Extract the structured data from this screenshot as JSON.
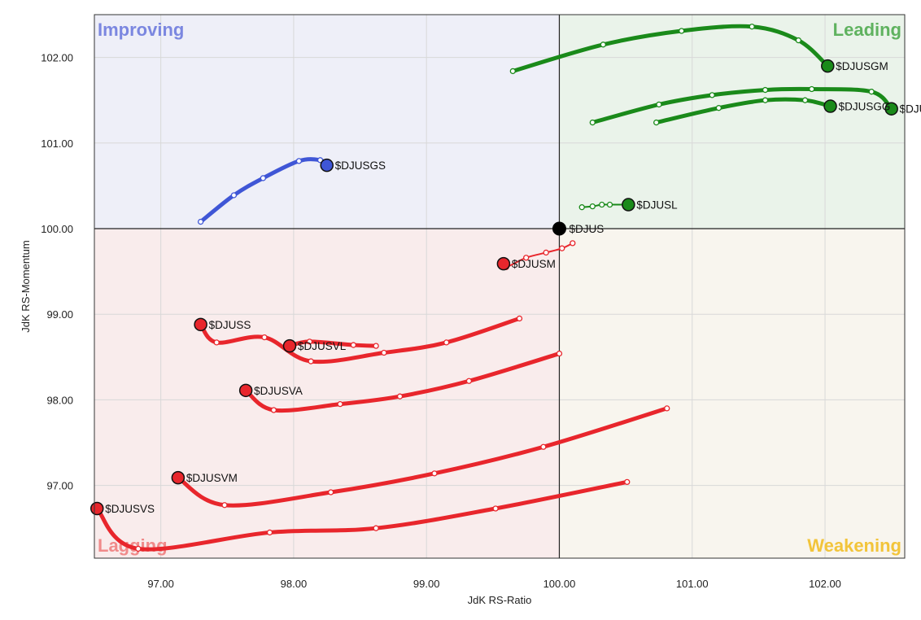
{
  "chart_data": {
    "type": "scatter",
    "subtype": "relative-rotation-graph",
    "xlabel": "JdK RS-Ratio",
    "ylabel": "JdK RS-Momentum",
    "xlim": [
      96.5,
      102.6
    ],
    "ylim": [
      96.15,
      102.5
    ],
    "x_ticks": [
      "97.00",
      "98.00",
      "99.00",
      "100.00",
      "101.00",
      "102.00"
    ],
    "x_tick_values": [
      97,
      98,
      99,
      100,
      101,
      102
    ],
    "y_ticks": [
      "97.00",
      "98.00",
      "99.00",
      "100.00",
      "101.00",
      "102.00"
    ],
    "y_tick_values": [
      97,
      98,
      99,
      100,
      101,
      102
    ],
    "grid": true,
    "center": [
      100,
      100
    ],
    "quadrants": [
      {
        "name": "Improving",
        "position": "top-left",
        "color": "#7b87e0",
        "fill": "#eeeff8"
      },
      {
        "name": "Leading",
        "position": "top-right",
        "color": "#5fb25f",
        "fill": "#eaf3ea"
      },
      {
        "name": "Lagging",
        "position": "bottom-left",
        "color": "#f08a8a",
        "fill": "#f9ecec"
      },
      {
        "name": "Weakening",
        "position": "bottom-right",
        "color": "#f2c43a",
        "fill": "#f8f5ee"
      }
    ],
    "benchmark": {
      "name": "$DJUS",
      "x": 100.0,
      "y": 100.0,
      "color": "#000000"
    },
    "series": [
      {
        "name": "$DJUSGM",
        "color": "#1a8a1a",
        "tail": [
          [
            99.65,
            101.84
          ],
          [
            100.33,
            102.15
          ],
          [
            100.92,
            102.31
          ],
          [
            101.45,
            102.36
          ],
          [
            101.8,
            102.2
          ],
          [
            102.02,
            101.9
          ]
        ]
      },
      {
        "name": "$DJUSGL",
        "color": "#1a8a1a",
        "tail": [
          [
            100.25,
            101.24
          ],
          [
            100.75,
            101.45
          ],
          [
            101.15,
            101.56
          ],
          [
            101.55,
            101.62
          ],
          [
            101.9,
            101.63
          ],
          [
            102.35,
            101.6
          ],
          [
            102.5,
            101.4
          ]
        ]
      },
      {
        "name": "$DJUSGG",
        "color": "#1a8a1a",
        "tail": [
          [
            100.73,
            101.24
          ],
          [
            101.2,
            101.41
          ],
          [
            101.55,
            101.5
          ],
          [
            101.85,
            101.5
          ],
          [
            102.04,
            101.43
          ]
        ]
      },
      {
        "name": "$DJUSL",
        "color": "#1a8a1a",
        "tail": [
          [
            100.17,
            100.25
          ],
          [
            100.25,
            100.26
          ],
          [
            100.32,
            100.28
          ],
          [
            100.38,
            100.28
          ],
          [
            100.52,
            100.28
          ]
        ]
      },
      {
        "name": "$DJUSGS",
        "color": "#3f56d6",
        "tail": [
          [
            97.3,
            100.08
          ],
          [
            97.55,
            100.39
          ],
          [
            97.77,
            100.59
          ],
          [
            98.04,
            100.79
          ],
          [
            98.2,
            100.8
          ],
          [
            98.25,
            100.74
          ]
        ]
      },
      {
        "name": "$DJUSM",
        "color": "#e8262c",
        "tail": [
          [
            100.1,
            99.83
          ],
          [
            100.02,
            99.77
          ],
          [
            99.9,
            99.72
          ],
          [
            99.75,
            99.66
          ],
          [
            99.6,
            99.55
          ],
          [
            99.58,
            99.59
          ]
        ]
      },
      {
        "name": "$DJUSS",
        "color": "#e8262c",
        "tail": [
          [
            99.7,
            98.95
          ],
          [
            99.15,
            98.67
          ],
          [
            98.68,
            98.55
          ],
          [
            98.13,
            98.45
          ],
          [
            97.78,
            98.73
          ],
          [
            97.42,
            98.67
          ],
          [
            97.3,
            98.88
          ]
        ]
      },
      {
        "name": "$DJUSVL",
        "color": "#e8262c",
        "tail": [
          [
            98.62,
            98.63
          ],
          [
            98.45,
            98.64
          ],
          [
            98.12,
            98.68
          ],
          [
            97.97,
            98.63
          ]
        ]
      },
      {
        "name": "$DJUSVA",
        "color": "#e8262c",
        "tail": [
          [
            100.0,
            98.54
          ],
          [
            99.32,
            98.22
          ],
          [
            98.8,
            98.04
          ],
          [
            98.35,
            97.95
          ],
          [
            97.85,
            97.88
          ],
          [
            97.64,
            98.11
          ]
        ]
      },
      {
        "name": "$DJUSVM",
        "color": "#e8262c",
        "tail": [
          [
            100.81,
            97.9
          ],
          [
            99.88,
            97.45
          ],
          [
            99.06,
            97.14
          ],
          [
            98.28,
            96.92
          ],
          [
            97.48,
            96.77
          ],
          [
            97.13,
            97.09
          ]
        ]
      },
      {
        "name": "$DJUSVS",
        "color": "#e8262c",
        "tail": [
          [
            100.51,
            97.04
          ],
          [
            99.52,
            96.73
          ],
          [
            98.62,
            96.5
          ],
          [
            97.82,
            96.45
          ],
          [
            96.83,
            96.26
          ],
          [
            96.52,
            96.73
          ]
        ]
      }
    ]
  }
}
